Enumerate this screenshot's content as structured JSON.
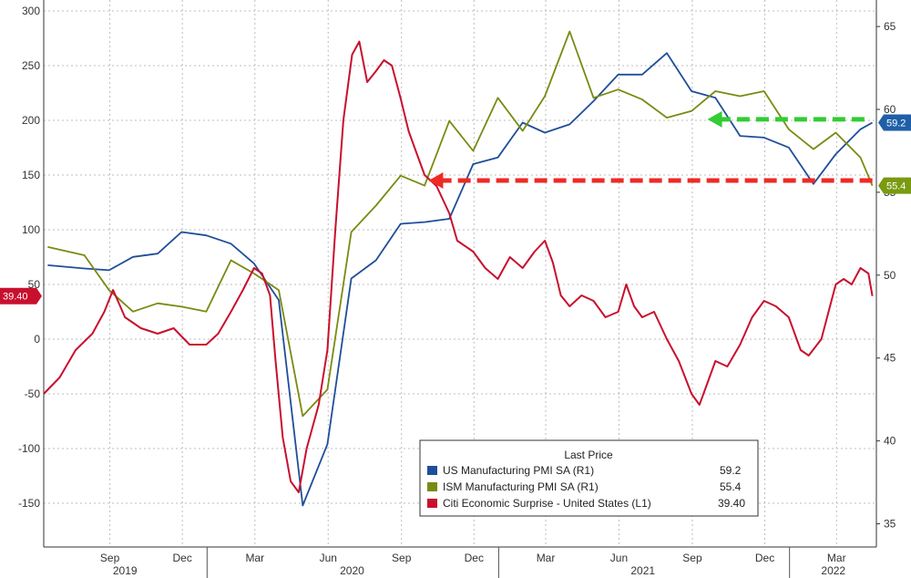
{
  "chart_data": {
    "type": "line",
    "x_range": [
      "2019-06-10",
      "2022-04-20"
    ],
    "month_ticks": [
      "Sep",
      "Dec",
      "Mar",
      "Jun",
      "Sep",
      "Dec",
      "Mar",
      "Jun",
      "Sep",
      "Dec",
      "Mar"
    ],
    "year_labels": [
      "2019",
      "2020",
      "2021",
      "2022"
    ],
    "left_axis": {
      "range": [
        -190,
        310
      ],
      "ticks": [
        "300",
        "250",
        "200",
        "150",
        "100",
        "50",
        "0",
        "-50",
        "-100",
        "-150"
      ]
    },
    "right_axis": {
      "range": [
        33.6,
        66.6
      ],
      "ticks": [
        "65",
        "60",
        "55",
        "50",
        "45",
        "40",
        "35"
      ]
    },
    "grid": true,
    "legend": {
      "position": "bottom-right",
      "title": "Last Price",
      "entries": [
        {
          "label": "US Manufacturing PMI SA  (R1)",
          "value": "59.2"
        },
        {
          "label": "ISM Manufacturing PMI SA  (R1)",
          "value": "55.4"
        },
        {
          "label": "Citi Economic Surprise - United States  (L1)",
          "value": "39.40"
        }
      ]
    },
    "last_value_tags": {
      "left": "39.40",
      "right_us": "59.2",
      "right_ism": "55.4"
    },
    "series": [
      {
        "name": "US Manufacturing PMI SA",
        "axis": "right",
        "color": "#1f4e9a",
        "points": [
          [
            "2019-06-15",
            50.6
          ],
          [
            "2019-07-31",
            50.4
          ],
          [
            "2019-08-31",
            50.3
          ],
          [
            "2019-09-30",
            51.1
          ],
          [
            "2019-10-31",
            51.3
          ],
          [
            "2019-11-30",
            52.6
          ],
          [
            "2019-12-31",
            52.4
          ],
          [
            "2020-01-31",
            51.9
          ],
          [
            "2020-02-29",
            50.7
          ],
          [
            "2020-03-31",
            48.5
          ],
          [
            "2020-04-30",
            36.1
          ],
          [
            "2020-05-31",
            39.8
          ],
          [
            "2020-06-30",
            49.8
          ],
          [
            "2020-07-31",
            50.9
          ],
          [
            "2020-08-31",
            53.1
          ],
          [
            "2020-09-30",
            53.2
          ],
          [
            "2020-10-31",
            53.4
          ],
          [
            "2020-11-30",
            56.7
          ],
          [
            "2020-12-31",
            57.1
          ],
          [
            "2021-01-31",
            59.2
          ],
          [
            "2021-02-28",
            58.6
          ],
          [
            "2021-03-31",
            59.1
          ],
          [
            "2021-04-30",
            60.5
          ],
          [
            "2021-05-31",
            62.1
          ],
          [
            "2021-06-30",
            62.1
          ],
          [
            "2021-07-31",
            63.4
          ],
          [
            "2021-08-31",
            61.1
          ],
          [
            "2021-09-30",
            60.7
          ],
          [
            "2021-10-31",
            58.4
          ],
          [
            "2021-11-30",
            58.3
          ],
          [
            "2021-12-31",
            57.7
          ],
          [
            "2022-01-31",
            55.5
          ],
          [
            "2022-02-28",
            57.3
          ],
          [
            "2022-03-31",
            58.8
          ],
          [
            "2022-04-15",
            59.2
          ]
        ]
      },
      {
        "name": "ISM Manufacturing PMI SA",
        "axis": "right",
        "color": "#7a8a12",
        "points": [
          [
            "2019-06-15",
            51.7
          ],
          [
            "2019-07-31",
            51.2
          ],
          [
            "2019-08-31",
            49.1
          ],
          [
            "2019-09-30",
            47.8
          ],
          [
            "2019-10-31",
            48.3
          ],
          [
            "2019-11-30",
            48.1
          ],
          [
            "2019-12-31",
            47.8
          ],
          [
            "2020-01-31",
            50.9
          ],
          [
            "2020-02-29",
            50.1
          ],
          [
            "2020-03-31",
            49.1
          ],
          [
            "2020-04-30",
            41.5
          ],
          [
            "2020-05-31",
            43.1
          ],
          [
            "2020-06-30",
            52.6
          ],
          [
            "2020-07-31",
            54.2
          ],
          [
            "2020-08-31",
            56.0
          ],
          [
            "2020-09-30",
            55.4
          ],
          [
            "2020-10-31",
            59.3
          ],
          [
            "2020-11-30",
            57.5
          ],
          [
            "2020-12-31",
            60.7
          ],
          [
            "2021-01-31",
            58.7
          ],
          [
            "2021-02-28",
            60.8
          ],
          [
            "2021-03-31",
            64.7
          ],
          [
            "2021-04-30",
            60.7
          ],
          [
            "2021-05-31",
            61.2
          ],
          [
            "2021-06-30",
            60.6
          ],
          [
            "2021-07-31",
            59.5
          ],
          [
            "2021-08-31",
            59.9
          ],
          [
            "2021-09-30",
            61.1
          ],
          [
            "2021-10-31",
            60.8
          ],
          [
            "2021-11-30",
            61.1
          ],
          [
            "2021-12-31",
            58.8
          ],
          [
            "2022-01-31",
            57.6
          ],
          [
            "2022-02-28",
            58.6
          ],
          [
            "2022-03-31",
            57.1
          ],
          [
            "2022-04-15",
            55.4
          ]
        ]
      },
      {
        "name": "Citi Economic Surprise - United States",
        "axis": "left",
        "color": "#c8102e",
        "points": [
          [
            "2019-06-10",
            -50
          ],
          [
            "2019-06-30",
            -35
          ],
          [
            "2019-07-20",
            -10
          ],
          [
            "2019-08-10",
            5
          ],
          [
            "2019-08-25",
            25
          ],
          [
            "2019-09-05",
            45
          ],
          [
            "2019-09-20",
            20
          ],
          [
            "2019-10-10",
            10
          ],
          [
            "2019-10-31",
            5
          ],
          [
            "2019-11-20",
            10
          ],
          [
            "2019-12-10",
            -5
          ],
          [
            "2019-12-31",
            -5
          ],
          [
            "2020-01-15",
            5
          ],
          [
            "2020-01-31",
            25
          ],
          [
            "2020-02-15",
            45
          ],
          [
            "2020-02-29",
            65
          ],
          [
            "2020-03-10",
            60
          ],
          [
            "2020-03-20",
            40
          ],
          [
            "2020-03-27",
            -20
          ],
          [
            "2020-04-05",
            -90
          ],
          [
            "2020-04-15",
            -130
          ],
          [
            "2020-04-25",
            -140
          ],
          [
            "2020-05-05",
            -100
          ],
          [
            "2020-05-20",
            -60
          ],
          [
            "2020-05-31",
            -10
          ],
          [
            "2020-06-10",
            100
          ],
          [
            "2020-06-20",
            200
          ],
          [
            "2020-07-01",
            260
          ],
          [
            "2020-07-10",
            272
          ],
          [
            "2020-07-20",
            235
          ],
          [
            "2020-07-31",
            245
          ],
          [
            "2020-08-10",
            255
          ],
          [
            "2020-08-20",
            250
          ],
          [
            "2020-08-31",
            220
          ],
          [
            "2020-09-10",
            190
          ],
          [
            "2020-09-20",
            170
          ],
          [
            "2020-09-30",
            150
          ],
          [
            "2020-10-15",
            140
          ],
          [
            "2020-10-31",
            115
          ],
          [
            "2020-11-10",
            90
          ],
          [
            "2020-11-30",
            80
          ],
          [
            "2020-12-15",
            65
          ],
          [
            "2020-12-31",
            55
          ],
          [
            "2021-01-15",
            75
          ],
          [
            "2021-01-31",
            65
          ],
          [
            "2021-02-15",
            80
          ],
          [
            "2021-02-28",
            90
          ],
          [
            "2021-03-10",
            70
          ],
          [
            "2021-03-20",
            40
          ],
          [
            "2021-03-31",
            30
          ],
          [
            "2021-04-15",
            40
          ],
          [
            "2021-04-30",
            35
          ],
          [
            "2021-05-15",
            20
          ],
          [
            "2021-05-31",
            25
          ],
          [
            "2021-06-10",
            50
          ],
          [
            "2021-06-20",
            30
          ],
          [
            "2021-06-30",
            20
          ],
          [
            "2021-07-15",
            25
          ],
          [
            "2021-07-31",
            0
          ],
          [
            "2021-08-15",
            -20
          ],
          [
            "2021-08-31",
            -50
          ],
          [
            "2021-09-10",
            -60
          ],
          [
            "2021-09-20",
            -40
          ],
          [
            "2021-09-30",
            -20
          ],
          [
            "2021-10-15",
            -25
          ],
          [
            "2021-10-31",
            -5
          ],
          [
            "2021-11-15",
            20
          ],
          [
            "2021-11-30",
            35
          ],
          [
            "2021-12-15",
            30
          ],
          [
            "2021-12-31",
            20
          ],
          [
            "2022-01-15",
            -10
          ],
          [
            "2022-01-25",
            -15
          ],
          [
            "2022-02-10",
            0
          ],
          [
            "2022-02-28",
            50
          ],
          [
            "2022-03-10",
            55
          ],
          [
            "2022-03-20",
            50
          ],
          [
            "2022-03-31",
            65
          ],
          [
            "2022-04-10",
            60
          ],
          [
            "2022-04-15",
            39.4
          ]
        ]
      }
    ],
    "annotations": [
      {
        "type": "dashed-arrow",
        "color": "#ee2a24",
        "axis": "left",
        "level": 145,
        "from": "2022-04-15",
        "to": "2020-10-05"
      },
      {
        "type": "dashed-arrow",
        "color": "#33cc33",
        "axis": "right",
        "level": 59.4,
        "from": "2022-04-05",
        "to": "2021-09-20"
      }
    ]
  }
}
